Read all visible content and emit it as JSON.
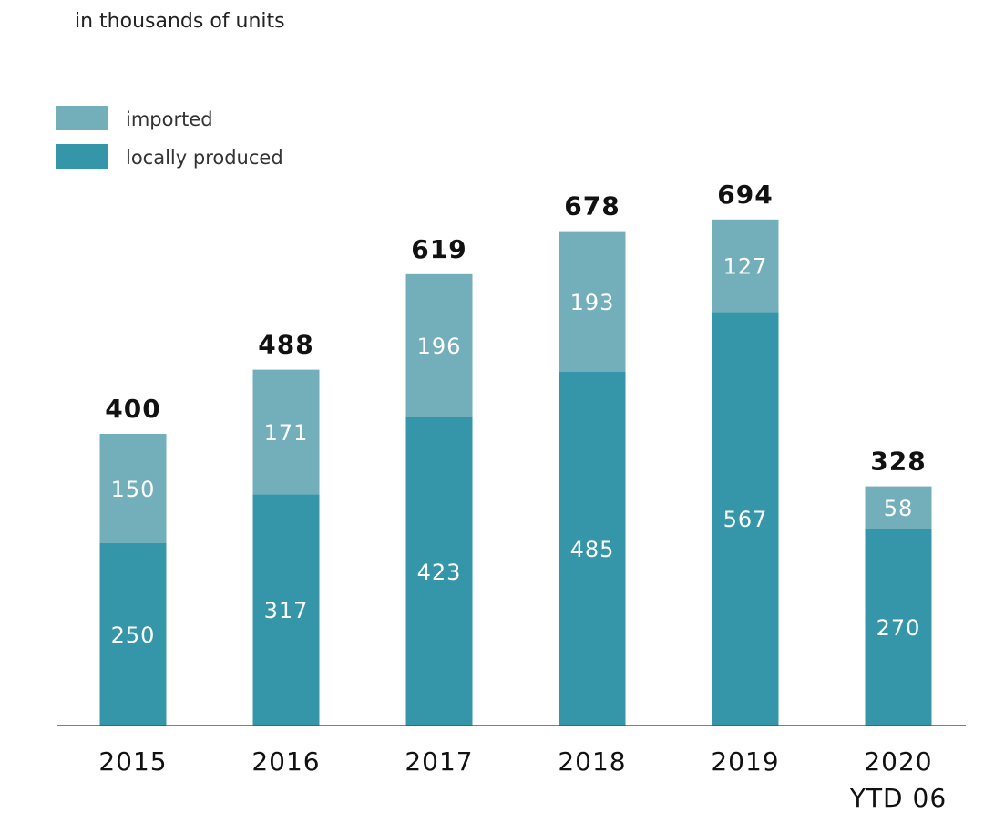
{
  "chart_data": {
    "type": "bar",
    "stacked": true,
    "subtitle": "in thousands of units",
    "categories": [
      [
        "2015"
      ],
      [
        "2016"
      ],
      [
        "2017"
      ],
      [
        "2018"
      ],
      [
        "2019"
      ],
      [
        "2020",
        "YTD 06"
      ]
    ],
    "series": [
      {
        "name": "locally produced",
        "values": [
          250,
          317,
          423,
          485,
          567,
          270
        ],
        "color": "#3596aa"
      },
      {
        "name": "imported",
        "values": [
          150,
          171,
          196,
          193,
          127,
          58
        ],
        "color": "#73aebb"
      }
    ],
    "totals": [
      400,
      488,
      619,
      678,
      694,
      328
    ],
    "legend": [
      "imported",
      "locally produced"
    ],
    "legend_position": "top-left",
    "ylim": [
      0,
      800
    ],
    "grid": false
  }
}
